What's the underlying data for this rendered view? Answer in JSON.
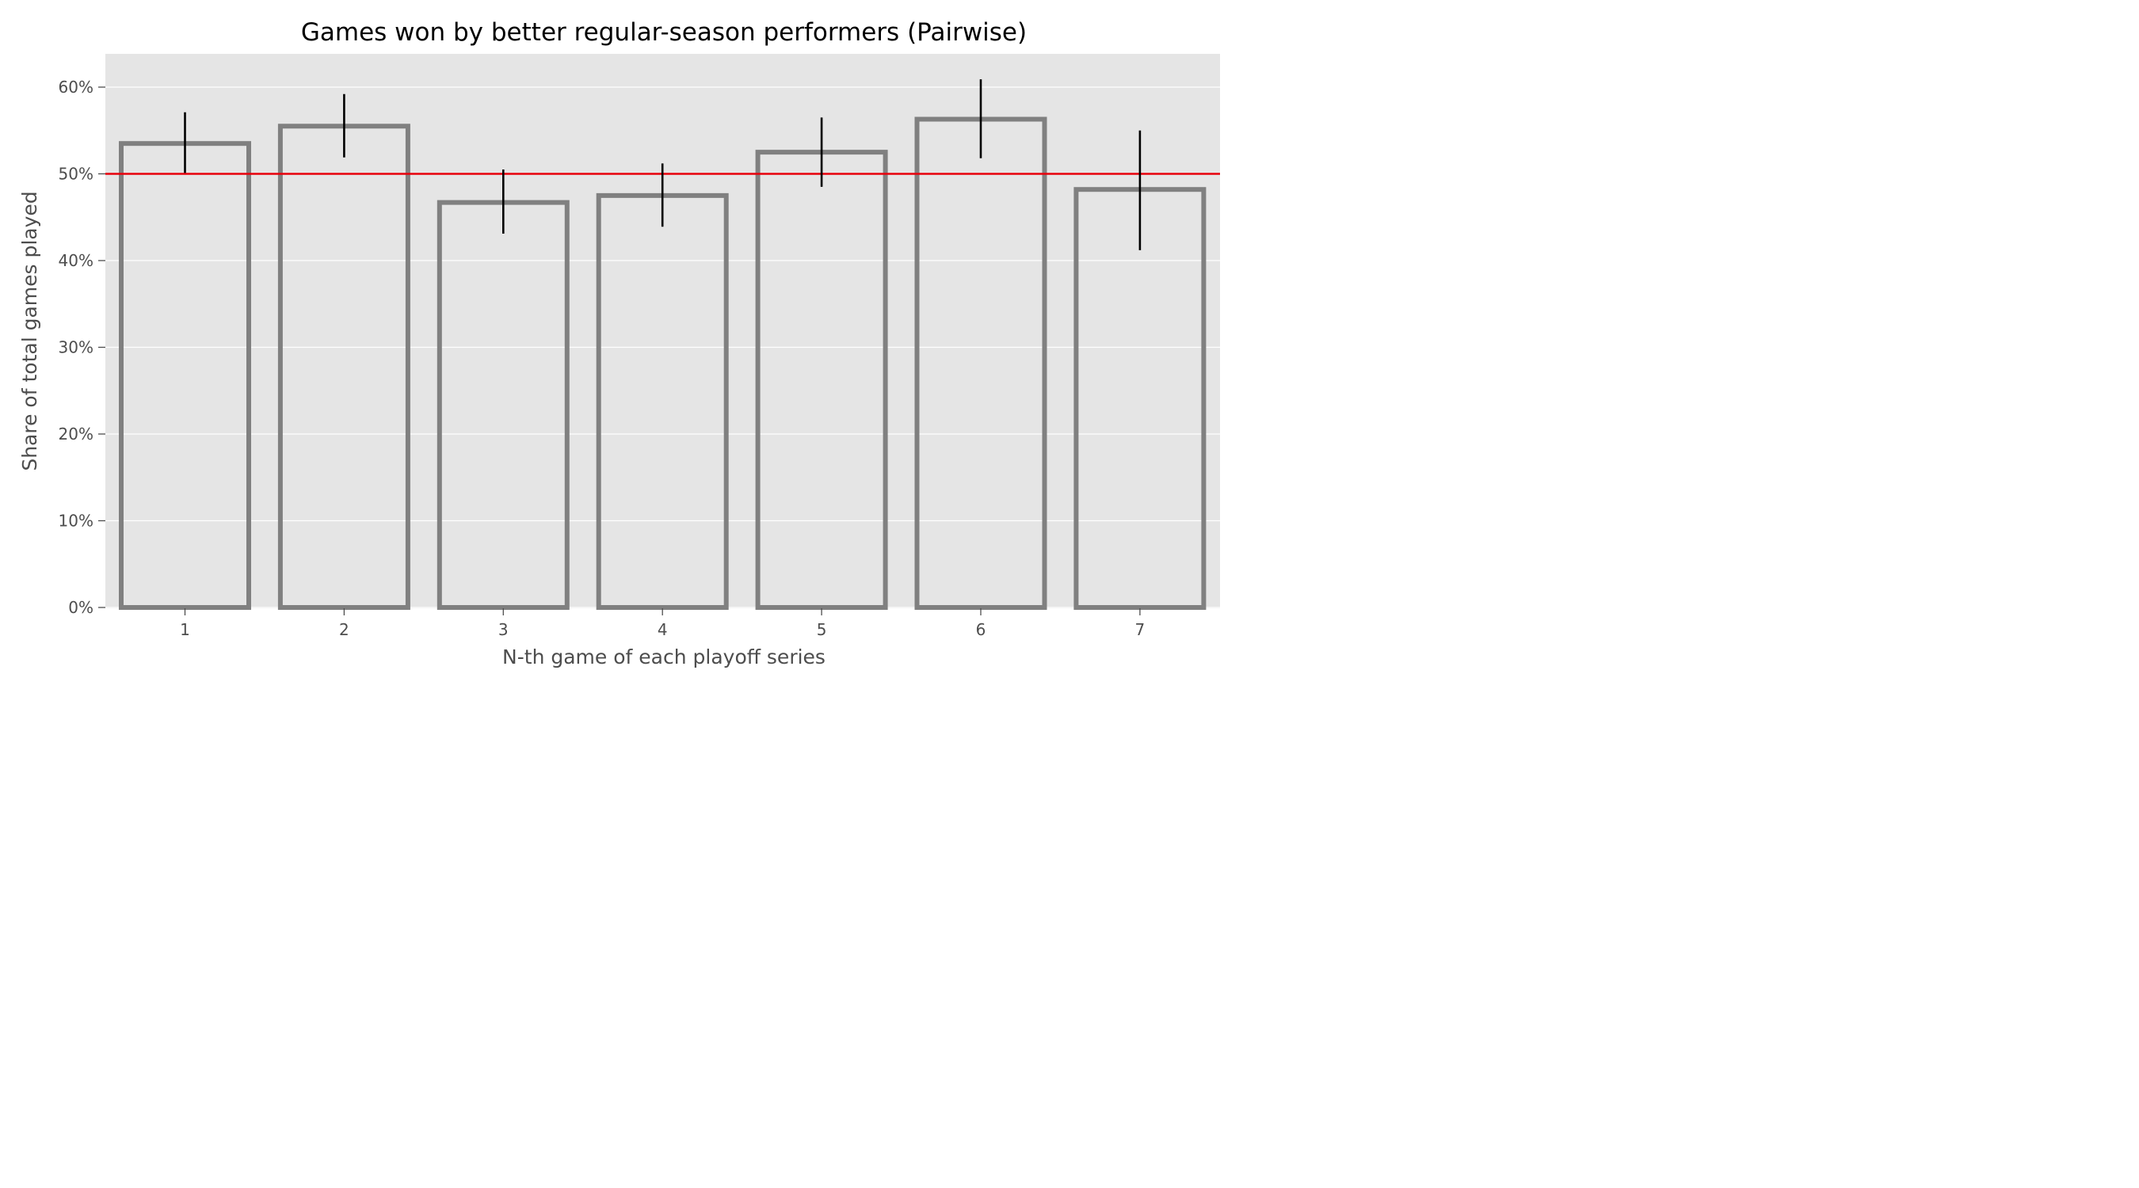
{
  "chart_data": {
    "type": "bar",
    "title": "Games won by better regular-season performers (Pairwise)",
    "xlabel": "N-th game of each playoff series",
    "ylabel": "Share of total games played",
    "categories": [
      "1",
      "2",
      "3",
      "4",
      "5",
      "6",
      "7"
    ],
    "values": [
      53.5,
      55.5,
      46.7,
      47.5,
      52.5,
      56.3,
      48.2
    ],
    "error_low": [
      50.1,
      51.9,
      43.1,
      43.9,
      48.5,
      51.8,
      41.2
    ],
    "error_high": [
      57.1,
      59.2,
      50.5,
      51.2,
      56.5,
      60.9,
      55.0
    ],
    "yticks": [
      0,
      10,
      20,
      30,
      40,
      50,
      60
    ],
    "ytick_labels": [
      "0%",
      "10%",
      "20%",
      "30%",
      "40%",
      "50%",
      "60%"
    ],
    "ylim": [
      0,
      64
    ],
    "reference_line": 50,
    "grid": true,
    "colors": {
      "plot_background": "#e5e5e5",
      "grid": "#ffffff",
      "bar_edge": "#808080",
      "error_bar": "#000000",
      "reference_line": "#e8000b",
      "tick_text": "#4d4d4d"
    }
  }
}
